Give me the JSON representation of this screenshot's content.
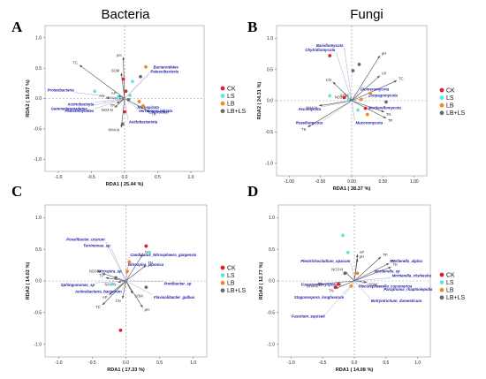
{
  "titles": {
    "bacteria": "Bacteria",
    "fungi": "Fungi"
  },
  "legend": [
    {
      "label": "CK",
      "color": "#e0202a"
    },
    {
      "label": "LS",
      "color": "#5fe6df"
    },
    {
      "label": "LB",
      "color": "#f08a24"
    },
    {
      "label": "LB+LS",
      "color": "#6b6b6b"
    }
  ],
  "chart_data": [
    {
      "panel": "A",
      "type": "scatter",
      "title": "Bacteria",
      "xlabel": "RDA1 ( 25.44 %)",
      "ylabel": "RDA2 ( 16.67 %)",
      "xlim": [
        -1.2,
        1.2
      ],
      "ylim": [
        -1.2,
        1.2
      ],
      "xticks": [
        "-1.0",
        "-0.5",
        "0.0",
        "0.5",
        "1.0"
      ],
      "yticks": [
        "-1.0",
        "-0.5",
        "0.0",
        "0.5",
        "1.0"
      ],
      "legend_position": "right",
      "env_vectors": [
        {
          "label": "TC",
          "x": -0.68,
          "y": 0.55
        },
        {
          "label": "pH",
          "x": -0.02,
          "y": 0.68
        },
        {
          "label": "SOM",
          "x": -0.05,
          "y": 0.42
        },
        {
          "label": "AP",
          "x": -0.1,
          "y": 0.05
        },
        {
          "label": "TP",
          "x": -0.12,
          "y": -0.08
        },
        {
          "label": "NO3-N",
          "x": -0.15,
          "y": -0.15
        },
        {
          "label": "TK",
          "x": 0.38,
          "y": -0.22
        },
        {
          "label": "AN",
          "x": -0.28,
          "y": 0.01
        },
        {
          "label": "NH4-N",
          "x": -0.05,
          "y": -0.48
        }
      ],
      "species": [
        {
          "label": "Bacteroidetes",
          "x": 0.42,
          "y": 0.48
        },
        {
          "label": "Patescibacteria",
          "x": 0.38,
          "y": 0.41
        },
        {
          "label": "Proteobacteria",
          "x": -0.75,
          "y": 0.1
        },
        {
          "label": "Actinobacteria",
          "x": -0.45,
          "y": -0.06
        },
        {
          "label": "Gemmatimonadetes",
          "x": -0.55,
          "y": -0.13
        },
        {
          "label": "Planctomycetes",
          "x": -0.45,
          "y": -0.17
        },
        {
          "label": "Nitrospirota",
          "x": 0.18,
          "y": -0.11
        },
        {
          "label": "Verrucomicrobiota",
          "x": 0.2,
          "y": -0.17
        },
        {
          "label": "Chloroflexi",
          "x": 0.35,
          "y": -0.19
        },
        {
          "label": "Acidobacteriota",
          "x": 0.05,
          "y": -0.35
        }
      ],
      "samples": [
        {
          "group": "CK",
          "x": 0.02,
          "y": 0.12
        },
        {
          "group": "CK",
          "x": -0.02,
          "y": 0.32
        },
        {
          "group": "CK",
          "x": 0.0,
          "y": -0.22
        },
        {
          "group": "LS",
          "x": -0.45,
          "y": 0.12
        },
        {
          "group": "LS",
          "x": 0.12,
          "y": 0.28
        },
        {
          "group": "LS",
          "x": -0.1,
          "y": 0.02
        },
        {
          "group": "LS",
          "x": 0.08,
          "y": 0.05
        },
        {
          "group": "LB",
          "x": 0.32,
          "y": 0.52
        },
        {
          "group": "LB",
          "x": 0.28,
          "y": -0.12
        },
        {
          "group": "LB",
          "x": 0.22,
          "y": -0.05
        },
        {
          "group": "LB+LS",
          "x": -0.03,
          "y": -0.42
        },
        {
          "group": "LB+LS",
          "x": 0.24,
          "y": 0.36
        },
        {
          "group": "LB+LS",
          "x": 0.06,
          "y": -0.02
        }
      ]
    },
    {
      "panel": "B",
      "type": "scatter",
      "title": "Fungi",
      "xlabel": "RDA1 ( 38.37 %)",
      "ylabel": "RDA2 ( 24.31 %)",
      "xlim": [
        -1.2,
        1.2
      ],
      "ylim": [
        -1.2,
        1.2
      ],
      "xticks": [
        "-1.00",
        "-0.50",
        "0.00",
        "0.50",
        "1.00"
      ],
      "yticks": [
        "-1.0",
        "-0.5",
        "0.0",
        "0.5",
        "1.0"
      ],
      "legend_position": "right",
      "env_vectors": [
        {
          "label": "pH",
          "x": 0.45,
          "y": 0.72
        },
        {
          "label": "AP",
          "x": 0.45,
          "y": 0.4
        },
        {
          "label": "TC",
          "x": 0.72,
          "y": 0.32
        },
        {
          "label": "CN",
          "x": -0.3,
          "y": 0.3
        },
        {
          "label": "SOM",
          "x": -0.02,
          "y": 0.05
        },
        {
          "label": "NO3-N",
          "x": -0.06,
          "y": 0.02
        },
        {
          "label": "NH4-N",
          "x": -0.52,
          "y": -0.08
        },
        {
          "label": "TK",
          "x": -0.7,
          "y": -0.42
        },
        {
          "label": "TN",
          "x": 0.52,
          "y": -0.18
        },
        {
          "label": "TP",
          "x": 0.55,
          "y": -0.28
        }
      ],
      "species": [
        {
          "label": "Basidiomycota",
          "x": -0.12,
          "y": 0.85
        },
        {
          "label": "Chytridiomycota",
          "x": -0.25,
          "y": 0.78
        },
        {
          "label": "Glomeromycota",
          "x": 0.12,
          "y": 0.15
        },
        {
          "label": "Zoopagomycota",
          "x": 0.25,
          "y": 0.05
        },
        {
          "label": "Mortierellomycota",
          "x": 0.25,
          "y": -0.08
        },
        {
          "label": "Ascomycota",
          "x": -0.48,
          "y": -0.1
        },
        {
          "label": "Rozellomycota",
          "x": -0.45,
          "y": -0.32
        },
        {
          "label": "Mucoromycota",
          "x": 0.05,
          "y": -0.32
        }
      ],
      "samples": [
        {
          "group": "CK",
          "x": -0.35,
          "y": 0.72
        },
        {
          "group": "CK",
          "x": -0.12,
          "y": 0.05
        },
        {
          "group": "CK",
          "x": 0.22,
          "y": -0.12
        },
        {
          "group": "LS",
          "x": -0.35,
          "y": 0.08
        },
        {
          "group": "LS",
          "x": -0.05,
          "y": 0.02
        },
        {
          "group": "LS",
          "x": 0.1,
          "y": -0.15
        },
        {
          "group": "LB",
          "x": 0.3,
          "y": 0.12
        },
        {
          "group": "LB",
          "x": 0.15,
          "y": 0.02
        },
        {
          "group": "LB",
          "x": 0.25,
          "y": -0.22
        },
        {
          "group": "LB+LS",
          "x": 0.12,
          "y": 0.58
        },
        {
          "group": "LB+LS",
          "x": 0.02,
          "y": 0.48
        },
        {
          "group": "LB+LS",
          "x": 0.55,
          "y": -0.02
        }
      ]
    },
    {
      "panel": "C",
      "type": "scatter",
      "title": "",
      "xlabel": "RDA1 ( 17.33 %)",
      "ylabel": "RDA2 ( 14.02 %)",
      "xlim": [
        -1.2,
        1.2
      ],
      "ylim": [
        -1.2,
        1.2
      ],
      "xticks": [
        "-1.0",
        "-0.5",
        "0.0",
        "0.5",
        "1.0"
      ],
      "yticks": [
        "-1.0",
        "-0.5",
        "0.0",
        "0.5",
        "1.0"
      ],
      "legend_position": "right",
      "env_vectors": [
        {
          "label": "TK",
          "x": 0.25,
          "y": 0.42
        },
        {
          "label": "TN",
          "x": 0.3,
          "y": 0.25
        },
        {
          "label": "NO3-N",
          "x": -0.35,
          "y": 0.12
        },
        {
          "label": "TP",
          "x": -0.3,
          "y": 0.05
        },
        {
          "label": "NH4-N",
          "x": -0.12,
          "y": -0.02
        },
        {
          "label": "AP",
          "x": -0.25,
          "y": -0.22
        },
        {
          "label": "CN",
          "x": -0.05,
          "y": -0.28
        },
        {
          "label": "TC",
          "x": -0.35,
          "y": -0.38
        },
        {
          "label": "SOM",
          "x": 0.1,
          "y": -0.2
        },
        {
          "label": "pH",
          "x": 0.25,
          "y": -0.42
        }
      ],
      "species": [
        {
          "label": "Povalibacter_ucarum",
          "x": -0.3,
          "y": 0.62
        },
        {
          "label": "Terrimonas_sp",
          "x": -0.22,
          "y": 0.52
        },
        {
          "label": "Candidatus_Nitrosphaera_gargensis",
          "x": 0.05,
          "y": 0.38
        },
        {
          "label": "Nitrospira_japonica",
          "x": 0.02,
          "y": 0.22
        },
        {
          "label": "Nitrospira_sp",
          "x": -0.05,
          "y": 0.12
        },
        {
          "label": "Sphingomonas_sp",
          "x": -0.45,
          "y": -0.03
        },
        {
          "label": "Actinobacteria_bacterium",
          "x": -0.05,
          "y": -0.13
        },
        {
          "label": "Pontibacter_sp",
          "x": 0.55,
          "y": -0.01
        },
        {
          "label": "Flavisolibacter_galbus",
          "x": 0.4,
          "y": -0.22
        }
      ],
      "samples": [
        {
          "group": "CK",
          "x": -0.08,
          "y": -0.78
        },
        {
          "group": "CK",
          "x": 0.3,
          "y": 0.55
        },
        {
          "group": "LS",
          "x": 0.35,
          "y": 0.45
        },
        {
          "group": "LS",
          "x": -0.2,
          "y": -0.05
        },
        {
          "group": "LB",
          "x": 0.05,
          "y": 0.3
        },
        {
          "group": "LB",
          "x": 0.02,
          "y": 0.15
        },
        {
          "group": "LB+LS",
          "x": -0.15,
          "y": 0.05
        },
        {
          "group": "LB+LS",
          "x": 0.3,
          "y": -0.1
        }
      ]
    },
    {
      "panel": "D",
      "type": "scatter",
      "title": "",
      "xlabel": "RDA1 ( 14.08 %)",
      "ylabel": "RDA2 ( 12.77 %)",
      "xlim": [
        -1.2,
        1.2
      ],
      "ylim": [
        -1.2,
        1.2
      ],
      "xticks": [
        "-1.0",
        "-0.5",
        "0.0",
        "0.5",
        "1.0"
      ],
      "yticks": [
        "-1.0",
        "-0.5",
        "0.0",
        "0.5",
        "1.0"
      ],
      "legend_position": "right",
      "env_vectors": [
        {
          "label": "AP",
          "x": 0.05,
          "y": 0.42
        },
        {
          "label": "TP",
          "x": 0.42,
          "y": 0.38
        },
        {
          "label": "NO3-N",
          "x": -0.15,
          "y": 0.15
        },
        {
          "label": "TC",
          "x": 0.55,
          "y": 0.28
        },
        {
          "label": "TK",
          "x": 0.58,
          "y": 0.22
        },
        {
          "label": "NH4-N",
          "x": -0.55,
          "y": -0.05
        },
        {
          "label": "SOM",
          "x": 0.2,
          "y": -0.02
        },
        {
          "label": "TN",
          "x": -0.3,
          "y": -0.12
        },
        {
          "label": "pH",
          "x": 0.05,
          "y": 0.35
        }
      ],
      "species": [
        {
          "label": "Pleotrichocladium_opacum",
          "x": -0.05,
          "y": 0.28
        },
        {
          "label": "Mortierella_alpina",
          "x": 0.55,
          "y": 0.28
        },
        {
          "label": "Mortierella_sp",
          "x": 0.3,
          "y": 0.12
        },
        {
          "label": "Mortierella_ritshiesha",
          "x": 0.58,
          "y": 0.05
        },
        {
          "label": "Paraphoma_rhaphiolepidis",
          "x": 0.45,
          "y": -0.1
        },
        {
          "label": "Fusarium_oxysporum",
          "x": -0.2,
          "y": -0.02
        },
        {
          "label": "Plectosphaerella_cucumerina",
          "x": 0.05,
          "y": -0.05
        },
        {
          "label": "Stagonospora_longhoorum",
          "x": -0.15,
          "y": -0.22
        },
        {
          "label": "Botryotrichum_domesticum",
          "x": 0.25,
          "y": -0.28
        },
        {
          "label": "Fusarium_equiseti",
          "x": -0.45,
          "y": -0.52
        }
      ],
      "samples": [
        {
          "group": "CK",
          "x": -0.25,
          "y": -0.05
        },
        {
          "group": "CK",
          "x": -0.3,
          "y": -0.1
        },
        {
          "group": "LS",
          "x": -0.18,
          "y": 0.72
        },
        {
          "group": "LS",
          "x": -0.1,
          "y": 0.45
        },
        {
          "group": "LB",
          "x": 0.05,
          "y": 0.12
        },
        {
          "group": "LB",
          "x": -0.05,
          "y": -0.08
        },
        {
          "group": "LB+LS",
          "x": -0.15,
          "y": 0.12
        },
        {
          "group": "LB+LS",
          "x": -0.55,
          "y": -0.05
        }
      ]
    }
  ]
}
